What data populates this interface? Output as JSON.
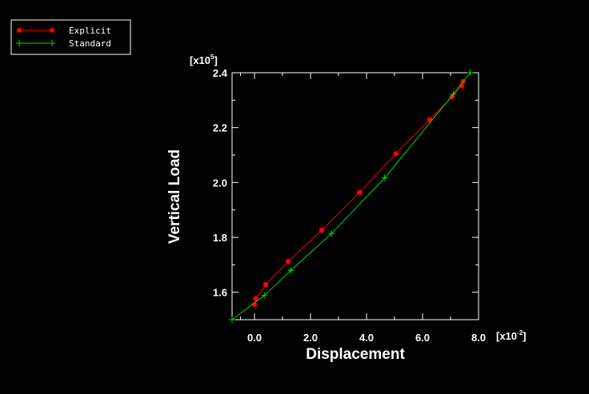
{
  "chart_data": {
    "type": "line",
    "xlabel": "Displacement",
    "ylabel": "Vertical Load",
    "x_multiplier_base": "[x10",
    "x_multiplier_exp": "-2",
    "x_multiplier_close": "]",
    "y_multiplier_base": "[x10",
    "y_multiplier_exp": "5",
    "y_multiplier_close": "]",
    "xlim": [
      -0.8,
      8.0
    ],
    "ylim": [
      1.5,
      2.4
    ],
    "x_ticks": [
      {
        "value": 0.0,
        "label": "0.0"
      },
      {
        "value": 2.0,
        "label": "2.0"
      },
      {
        "value": 4.0,
        "label": "4.0"
      },
      {
        "value": 6.0,
        "label": "6.0"
      },
      {
        "value": 8.0,
        "label": "8.0"
      }
    ],
    "x_minor_ticks": [
      -0.5,
      1.0,
      3.0,
      5.0,
      7.0
    ],
    "y_ticks": [
      {
        "value": 1.6,
        "label": "1.6"
      },
      {
        "value": 1.8,
        "label": "1.8"
      },
      {
        "value": 2.0,
        "label": "2.0"
      },
      {
        "value": 2.2,
        "label": "2.2"
      },
      {
        "value": 2.4,
        "label": "2.4"
      }
    ],
    "y_minor_ticks": [
      1.5,
      1.7,
      1.9,
      2.1,
      2.3
    ],
    "grid": false,
    "legend": "top-left",
    "series": [
      {
        "name": "Explicit",
        "color": "#ff0000",
        "marker": "circle",
        "points": [
          [
            0.0,
            1.555
          ],
          [
            0.05,
            1.577
          ],
          [
            0.4,
            1.628
          ],
          [
            1.2,
            1.712
          ],
          [
            2.4,
            1.826
          ],
          [
            3.75,
            1.964
          ],
          [
            5.05,
            2.105
          ],
          [
            6.25,
            2.229
          ],
          [
            7.05,
            2.312
          ],
          [
            7.4,
            2.352
          ],
          [
            7.45,
            2.368
          ]
        ]
      },
      {
        "name": "Standard",
        "color": "#00dd00",
        "marker": "plus",
        "points": [
          [
            -0.8,
            1.5
          ],
          [
            0.35,
            1.588
          ],
          [
            1.3,
            1.68
          ],
          [
            2.75,
            1.814
          ],
          [
            4.65,
            2.017
          ],
          [
            7.1,
            2.322
          ],
          [
            7.7,
            2.4
          ]
        ]
      }
    ]
  }
}
